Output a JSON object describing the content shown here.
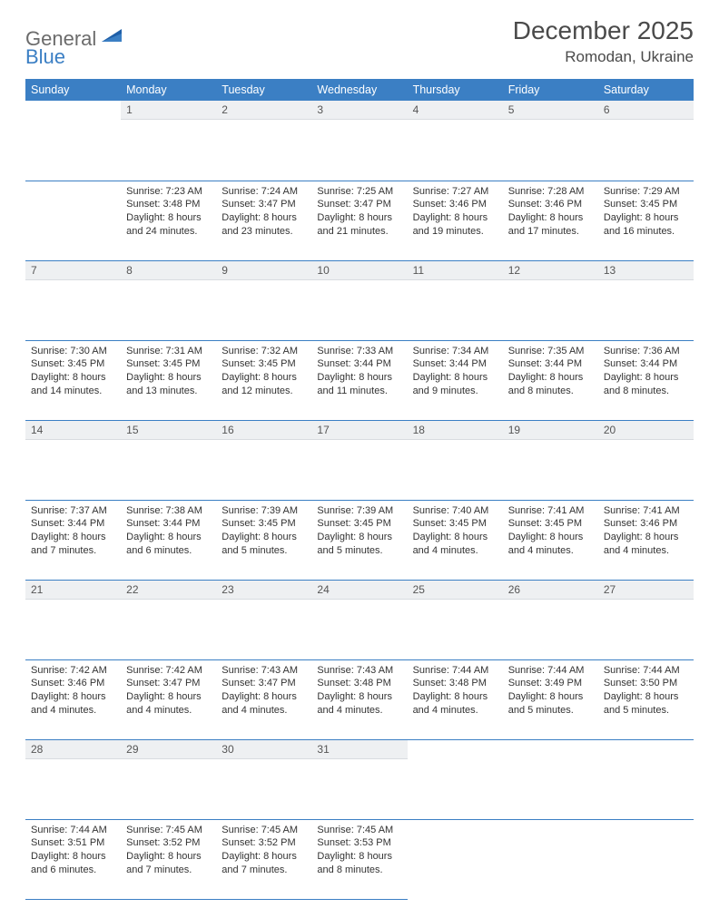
{
  "logo": {
    "general": "General",
    "blue": "Blue"
  },
  "header": {
    "title": "December 2025",
    "location": "Romodan, Ukraine"
  },
  "colors": {
    "brand_blue": "#3b7fc4",
    "header_bg": "#3b7fc4",
    "header_text": "#ffffff",
    "daynum_bg": "#eef0f2",
    "text": "#333333",
    "rule": "#3b7fc4"
  },
  "weekdays": [
    "Sunday",
    "Monday",
    "Tuesday",
    "Wednesday",
    "Thursday",
    "Friday",
    "Saturday"
  ],
  "weeks": [
    [
      null,
      {
        "n": "1",
        "sr": "7:23 AM",
        "ss": "3:48 PM",
        "dl": "8 hours and 24 minutes."
      },
      {
        "n": "2",
        "sr": "7:24 AM",
        "ss": "3:47 PM",
        "dl": "8 hours and 23 minutes."
      },
      {
        "n": "3",
        "sr": "7:25 AM",
        "ss": "3:47 PM",
        "dl": "8 hours and 21 minutes."
      },
      {
        "n": "4",
        "sr": "7:27 AM",
        "ss": "3:46 PM",
        "dl": "8 hours and 19 minutes."
      },
      {
        "n": "5",
        "sr": "7:28 AM",
        "ss": "3:46 PM",
        "dl": "8 hours and 17 minutes."
      },
      {
        "n": "6",
        "sr": "7:29 AM",
        "ss": "3:45 PM",
        "dl": "8 hours and 16 minutes."
      }
    ],
    [
      {
        "n": "7",
        "sr": "7:30 AM",
        "ss": "3:45 PM",
        "dl": "8 hours and 14 minutes."
      },
      {
        "n": "8",
        "sr": "7:31 AM",
        "ss": "3:45 PM",
        "dl": "8 hours and 13 minutes."
      },
      {
        "n": "9",
        "sr": "7:32 AM",
        "ss": "3:45 PM",
        "dl": "8 hours and 12 minutes."
      },
      {
        "n": "10",
        "sr": "7:33 AM",
        "ss": "3:44 PM",
        "dl": "8 hours and 11 minutes."
      },
      {
        "n": "11",
        "sr": "7:34 AM",
        "ss": "3:44 PM",
        "dl": "8 hours and 9 minutes."
      },
      {
        "n": "12",
        "sr": "7:35 AM",
        "ss": "3:44 PM",
        "dl": "8 hours and 8 minutes."
      },
      {
        "n": "13",
        "sr": "7:36 AM",
        "ss": "3:44 PM",
        "dl": "8 hours and 8 minutes."
      }
    ],
    [
      {
        "n": "14",
        "sr": "7:37 AM",
        "ss": "3:44 PM",
        "dl": "8 hours and 7 minutes."
      },
      {
        "n": "15",
        "sr": "7:38 AM",
        "ss": "3:44 PM",
        "dl": "8 hours and 6 minutes."
      },
      {
        "n": "16",
        "sr": "7:39 AM",
        "ss": "3:45 PM",
        "dl": "8 hours and 5 minutes."
      },
      {
        "n": "17",
        "sr": "7:39 AM",
        "ss": "3:45 PM",
        "dl": "8 hours and 5 minutes."
      },
      {
        "n": "18",
        "sr": "7:40 AM",
        "ss": "3:45 PM",
        "dl": "8 hours and 4 minutes."
      },
      {
        "n": "19",
        "sr": "7:41 AM",
        "ss": "3:45 PM",
        "dl": "8 hours and 4 minutes."
      },
      {
        "n": "20",
        "sr": "7:41 AM",
        "ss": "3:46 PM",
        "dl": "8 hours and 4 minutes."
      }
    ],
    [
      {
        "n": "21",
        "sr": "7:42 AM",
        "ss": "3:46 PM",
        "dl": "8 hours and 4 minutes."
      },
      {
        "n": "22",
        "sr": "7:42 AM",
        "ss": "3:47 PM",
        "dl": "8 hours and 4 minutes."
      },
      {
        "n": "23",
        "sr": "7:43 AM",
        "ss": "3:47 PM",
        "dl": "8 hours and 4 minutes."
      },
      {
        "n": "24",
        "sr": "7:43 AM",
        "ss": "3:48 PM",
        "dl": "8 hours and 4 minutes."
      },
      {
        "n": "25",
        "sr": "7:44 AM",
        "ss": "3:48 PM",
        "dl": "8 hours and 4 minutes."
      },
      {
        "n": "26",
        "sr": "7:44 AM",
        "ss": "3:49 PM",
        "dl": "8 hours and 5 minutes."
      },
      {
        "n": "27",
        "sr": "7:44 AM",
        "ss": "3:50 PM",
        "dl": "8 hours and 5 minutes."
      }
    ],
    [
      {
        "n": "28",
        "sr": "7:44 AM",
        "ss": "3:51 PM",
        "dl": "8 hours and 6 minutes."
      },
      {
        "n": "29",
        "sr": "7:45 AM",
        "ss": "3:52 PM",
        "dl": "8 hours and 7 minutes."
      },
      {
        "n": "30",
        "sr": "7:45 AM",
        "ss": "3:52 PM",
        "dl": "8 hours and 7 minutes."
      },
      {
        "n": "31",
        "sr": "7:45 AM",
        "ss": "3:53 PM",
        "dl": "8 hours and 8 minutes."
      },
      null,
      null,
      null
    ]
  ],
  "labels": {
    "sunrise": "Sunrise: ",
    "sunset": "Sunset: ",
    "daylight": "Daylight: "
  }
}
